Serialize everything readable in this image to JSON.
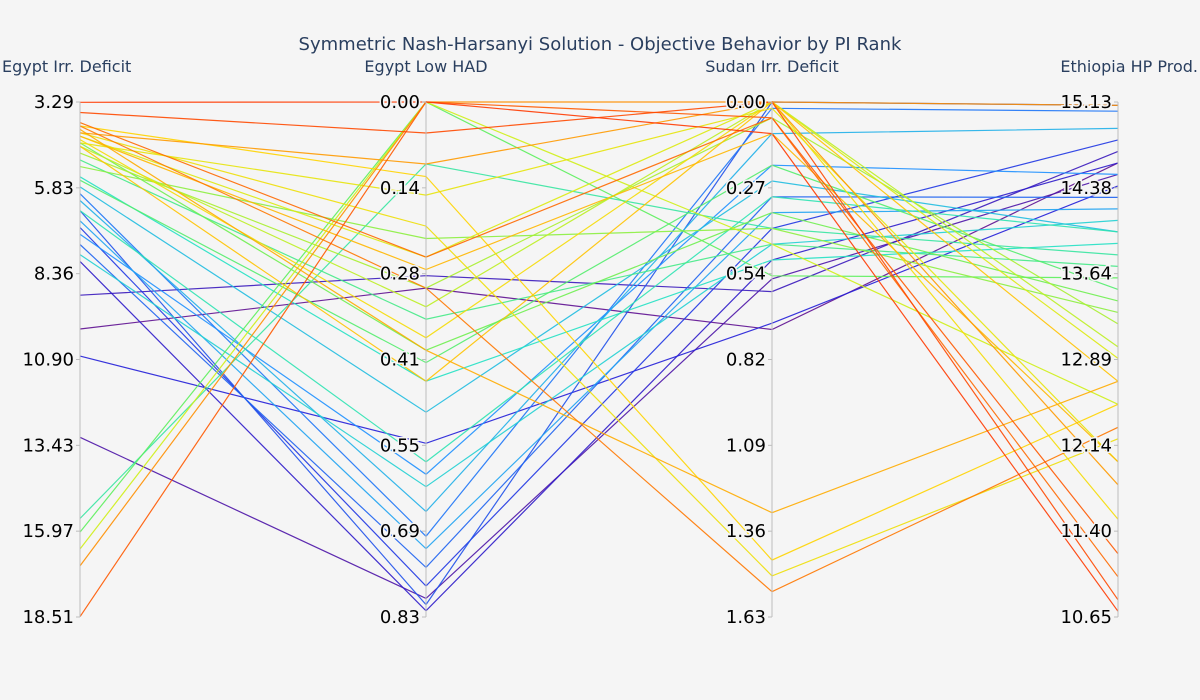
{
  "chart_data": {
    "type": "parallel_coordinates",
    "title": "Symmetric Nash-Harsanyi Solution - Objective Behavior by PI Rank",
    "color_scale": [
      "#6a0d83",
      "#1f1fdc",
      "#1e90ff",
      "#22e0c8",
      "#5cf05c",
      "#d4f013",
      "#ffd400",
      "#ff8c00",
      "#ff2a00"
    ],
    "axes": [
      {
        "name": "Egypt Irr. Deficit",
        "range": [
          3.29,
          18.51
        ],
        "reversed": true,
        "ticks": [
          "3.29",
          "5.83",
          "8.36",
          "10.90",
          "13.43",
          "15.97",
          "18.51"
        ]
      },
      {
        "name": "Egypt Low HAD",
        "range": [
          0.0,
          0.83
        ],
        "reversed": true,
        "ticks": [
          "0.00",
          "0.14",
          "0.28",
          "0.41",
          "0.55",
          "0.69",
          "0.83"
        ]
      },
      {
        "name": "Sudan Irr. Deficit",
        "range": [
          0.0,
          1.63
        ],
        "reversed": true,
        "ticks": [
          "0.00",
          "0.27",
          "0.54",
          "0.82",
          "1.09",
          "1.36",
          "1.63"
        ]
      },
      {
        "name": "Ethiopia HP Prod.",
        "range": [
          10.65,
          15.13
        ],
        "reversed": false,
        "ticks": [
          "15.13",
          "14.38",
          "13.64",
          "12.89",
          "12.14",
          "11.40",
          "10.65"
        ]
      }
    ],
    "lines": [
      {
        "rank": 0.02,
        "values": [
          10.0,
          0.3,
          0.72,
          14.6
        ]
      },
      {
        "rank": 0.05,
        "values": [
          13.2,
          0.8,
          0.56,
          14.5
        ]
      },
      {
        "rank": 0.08,
        "values": [
          9.0,
          0.28,
          0.6,
          14.7
        ]
      },
      {
        "rank": 0.1,
        "values": [
          8.0,
          0.82,
          0.5,
          14.6
        ]
      },
      {
        "rank": 0.12,
        "values": [
          10.8,
          0.55,
          0.7,
          14.4
        ]
      },
      {
        "rank": 0.15,
        "values": [
          7.0,
          0.78,
          0.4,
          14.8
        ]
      },
      {
        "rank": 0.18,
        "values": [
          6.5,
          0.81,
          0.0,
          15.1
        ]
      },
      {
        "rank": 0.2,
        "values": [
          7.5,
          0.75,
          0.3,
          14.3
        ]
      },
      {
        "rank": 0.22,
        "values": [
          6.0,
          0.7,
          0.02,
          15.05
        ]
      },
      {
        "rank": 0.25,
        "values": [
          7.2,
          0.6,
          0.2,
          14.5
        ]
      },
      {
        "rank": 0.28,
        "values": [
          6.8,
          0.72,
          0.35,
          14.2
        ]
      },
      {
        "rank": 0.3,
        "values": [
          6.2,
          0.66,
          0.1,
          14.9
        ]
      },
      {
        "rank": 0.32,
        "values": [
          5.8,
          0.5,
          0.25,
          14.0
        ]
      },
      {
        "rank": 0.35,
        "values": [
          7.8,
          0.62,
          0.45,
          14.1
        ]
      },
      {
        "rank": 0.38,
        "values": [
          5.5,
          0.45,
          0.5,
          13.9
        ]
      },
      {
        "rank": 0.4,
        "values": [
          6.5,
          0.58,
          0.3,
          14.0
        ]
      },
      {
        "rank": 0.42,
        "values": [
          15.6,
          0.1,
          0.4,
          13.8
        ]
      },
      {
        "rank": 0.45,
        "values": [
          5.0,
          0.35,
          0.45,
          13.7
        ]
      },
      {
        "rank": 0.48,
        "values": [
          5.6,
          0.42,
          0.2,
          13.5
        ]
      },
      {
        "rank": 0.5,
        "values": [
          16.0,
          0.0,
          0.55,
          13.6
        ]
      },
      {
        "rank": 0.52,
        "values": [
          4.5,
          0.4,
          0.35,
          13.4
        ]
      },
      {
        "rank": 0.55,
        "values": [
          5.2,
          0.22,
          0.4,
          13.3
        ]
      },
      {
        "rank": 0.58,
        "values": [
          4.8,
          0.3,
          0.05,
          13.2
        ]
      },
      {
        "rank": 0.6,
        "values": [
          4.6,
          0.33,
          0.0,
          13.0
        ]
      },
      {
        "rank": 0.62,
        "values": [
          16.5,
          0.0,
          0.45,
          12.5
        ]
      },
      {
        "rank": 0.65,
        "values": [
          4.3,
          0.25,
          0.0,
          12.9
        ]
      },
      {
        "rank": 0.68,
        "values": [
          4.5,
          0.15,
          0.02,
          12.0
        ]
      },
      {
        "rank": 0.7,
        "values": [
          4.2,
          0.2,
          1.5,
          12.2
        ]
      },
      {
        "rank": 0.72,
        "values": [
          4.4,
          0.38,
          0.0,
          11.5
        ]
      },
      {
        "rank": 0.75,
        "values": [
          4.0,
          0.12,
          1.45,
          12.5
        ]
      },
      {
        "rank": 0.78,
        "values": [
          4.6,
          0.45,
          0.0,
          12.7
        ]
      },
      {
        "rank": 0.8,
        "values": [
          4.3,
          0.27,
          0.1,
          12.0
        ]
      },
      {
        "rank": 0.82,
        "values": [
          4.1,
          0.4,
          1.3,
          12.7
        ]
      },
      {
        "rank": 0.85,
        "values": [
          4.2,
          0.1,
          0.0,
          11.8
        ]
      },
      {
        "rank": 0.87,
        "values": [
          17.0,
          0.0,
          0.0,
          15.1
        ]
      },
      {
        "rank": 0.9,
        "values": [
          4.0,
          0.3,
          1.55,
          12.3
        ]
      },
      {
        "rank": 0.92,
        "values": [
          3.9,
          0.25,
          0.05,
          11.0
        ]
      },
      {
        "rank": 0.94,
        "values": [
          18.5,
          0.0,
          0.05,
          11.2
        ]
      },
      {
        "rank": 0.96,
        "values": [
          3.6,
          0.05,
          0.0,
          10.8
        ]
      },
      {
        "rank": 0.98,
        "values": [
          3.3,
          0.0,
          0.1,
          10.7
        ]
      }
    ]
  }
}
